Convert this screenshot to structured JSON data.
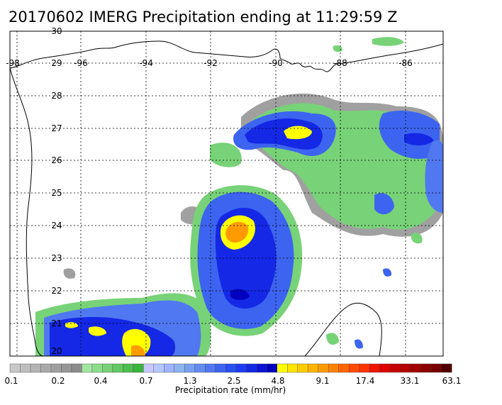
{
  "title": "20170602 IMERG Precipitation ending at 11:29:59 Z",
  "lon_labels": [
    "-98",
    "-96",
    "-94",
    "-92",
    "-90",
    "-88",
    "-86"
  ],
  "lat_labels": [
    "30",
    "29",
    "28",
    "27",
    "26",
    "25",
    "24",
    "23",
    "22",
    "21",
    "20"
  ],
  "colorbar": {
    "title": "Precipitation rate (mm/hr)",
    "tick_labels": [
      "0.1",
      "0.2",
      "0.4",
      "0.7",
      "1.3",
      "2.5",
      "4.8",
      "9.1",
      "17.4",
      "33.1",
      "63.1"
    ],
    "colors": [
      "#c8c8c8",
      "#bebebe",
      "#b4b4b4",
      "#aaaaaa",
      "#a0a0a0",
      "#969696",
      "#8c8c8c",
      "#a0e6a0",
      "#8cdc8c",
      "#78d278",
      "#64c864",
      "#50be50",
      "#3cb43c",
      "#c8c8ff",
      "#b4c8ff",
      "#a0b4ff",
      "#8cb4f0",
      "#78a0f0",
      "#648cf0",
      "#5078f0",
      "#3c64f0",
      "#2850f0",
      "#1e3cf0",
      "#1428e6",
      "#0a14d2",
      "#0000be",
      "#ffff00",
      "#ffe600",
      "#ffcc00",
      "#ffb400",
      "#ff9b00",
      "#ff8200",
      "#ff6400",
      "#ff4b00",
      "#ff3200",
      "#f01400",
      "#dc0000",
      "#c80000",
      "#b40000",
      "#a00000",
      "#8c0000",
      "#780000",
      "#500000"
    ]
  }
}
